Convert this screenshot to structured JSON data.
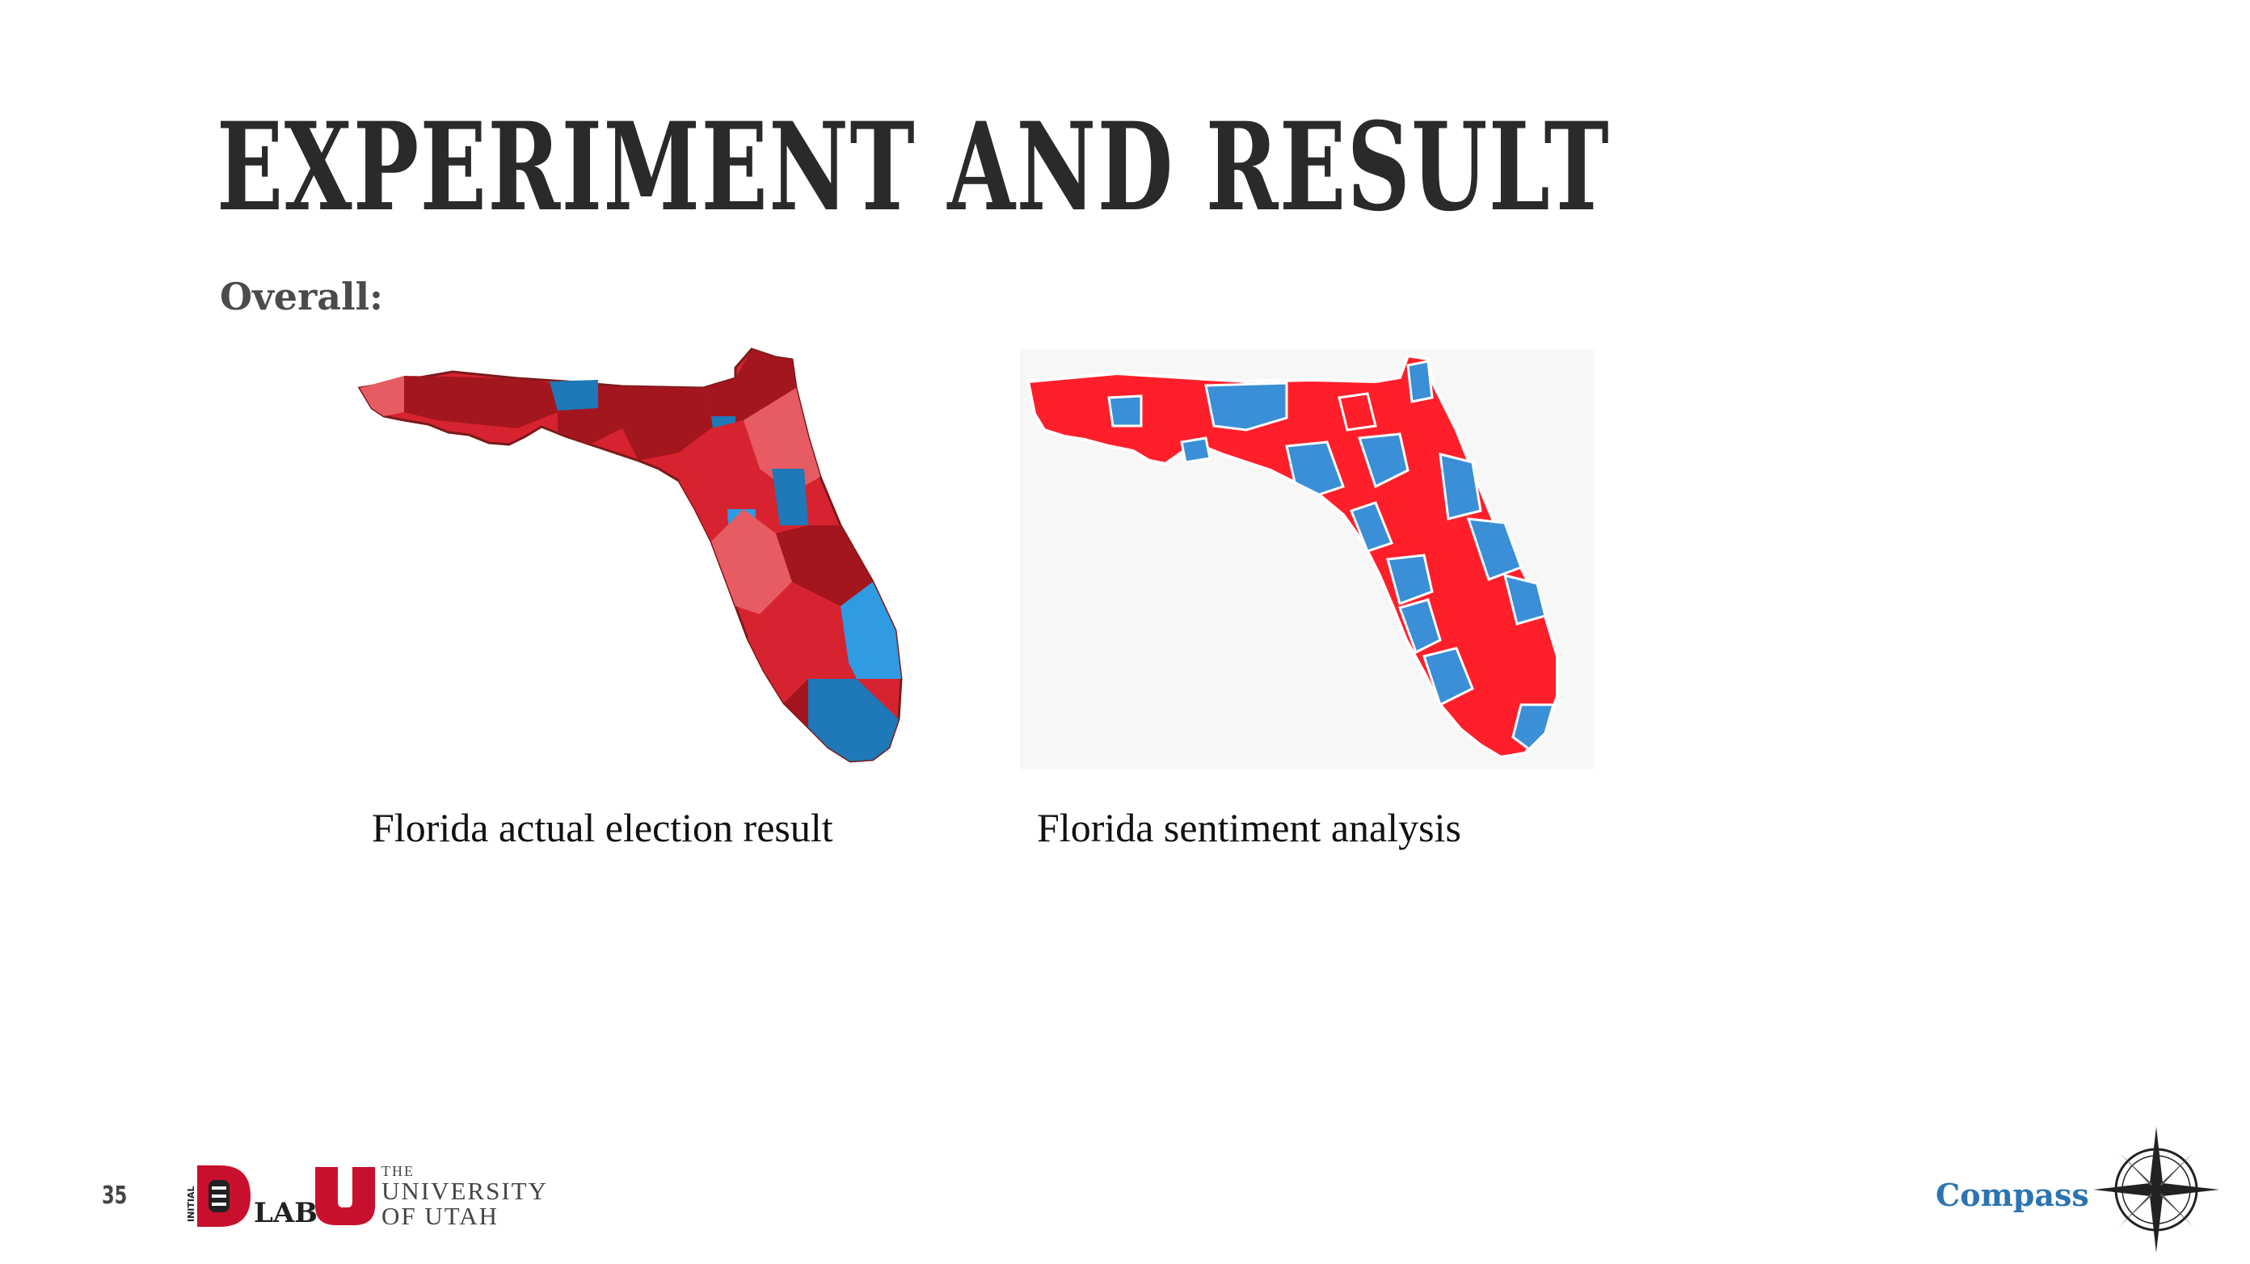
{
  "slide": {
    "title": "EXPERIMENT AND RESULT",
    "subtitle": "Overall:",
    "page_number": "35"
  },
  "maps": [
    {
      "caption": "Florida actual election result",
      "colors": {
        "dark_red": "#a3161e",
        "red": "#d7232f",
        "light_red": "#e75b63",
        "blue": "#1f78b8",
        "light_blue": "#2e9be3"
      }
    },
    {
      "caption": "Florida sentiment analysis",
      "colors": {
        "red": "#ff1f2b",
        "blue": "#3a8fd6",
        "background": "#f7f7f7"
      }
    }
  ],
  "footer": {
    "logo_text": "LAB",
    "logo_vertical_text": "INITIAL",
    "university": {
      "the": "THE",
      "line1": "UNIVERSITY",
      "line2": "OF UTAH"
    },
    "brand": "Compass",
    "brand_color": "#2b74b0"
  }
}
